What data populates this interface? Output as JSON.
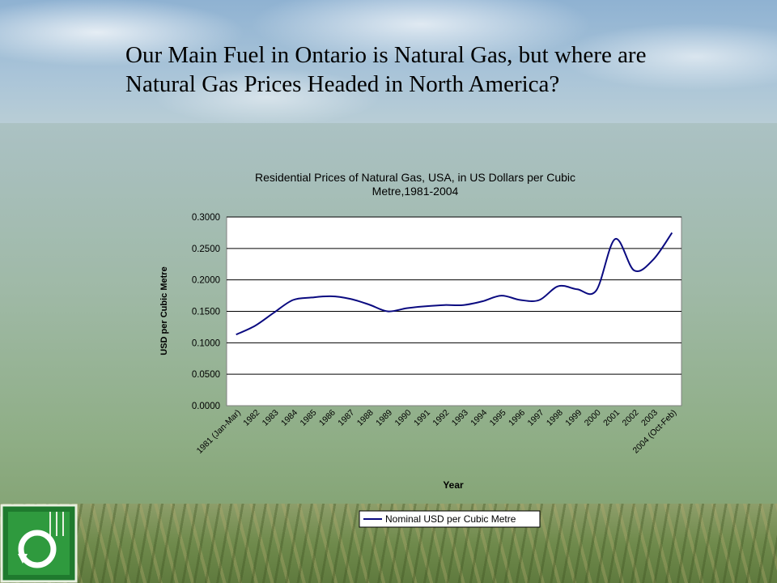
{
  "slide": {
    "title_line1": "Our Main Fuel in Ontario is Natural Gas, but where are",
    "title_line2": "Natural Gas Prices Headed in North America?"
  },
  "chart_data": {
    "type": "line",
    "title_line1": "Residential Prices of Natural Gas, USA, in US Dollars per Cubic",
    "title_line2": "Metre,1981-2004",
    "xlabel": "Year",
    "ylabel": "USD per Cubic Metre",
    "ylim": [
      0,
      0.3
    ],
    "y_ticks": [
      "0.0000",
      "0.0500",
      "0.1000",
      "0.1500",
      "0.2000",
      "0.2500",
      "0.3000"
    ],
    "categories": [
      "1981 (Jan-Mar)",
      "1982",
      "1983",
      "1984",
      "1985",
      "1986",
      "1987",
      "1988",
      "1989",
      "1990",
      "1991",
      "1992",
      "1993",
      "1994",
      "1995",
      "1996",
      "1997",
      "1998",
      "1999",
      "2000",
      "2001",
      "2002",
      "2003",
      "2004 (Oct-Feb)"
    ],
    "grid": "horizontal",
    "legend_position": "bottom",
    "series": [
      {
        "name": "Nominal USD per Cubic Metre",
        "color": "#0a0a80",
        "values": [
          0.113,
          0.127,
          0.148,
          0.168,
          0.172,
          0.174,
          0.17,
          0.161,
          0.15,
          0.155,
          0.158,
          0.16,
          0.16,
          0.166,
          0.175,
          0.168,
          0.168,
          0.19,
          0.185,
          0.183,
          0.265,
          0.215,
          0.232,
          0.275
        ]
      }
    ]
  }
}
